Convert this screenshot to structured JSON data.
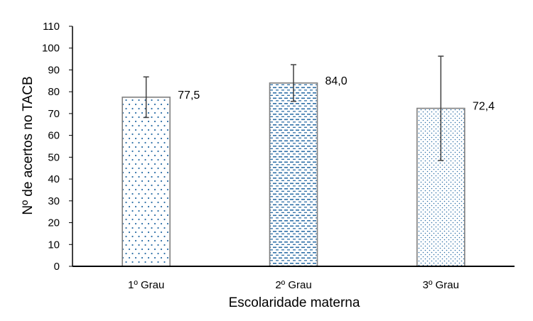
{
  "chart_data": {
    "type": "bar",
    "title": "",
    "xlabel": "Escolaridade materna",
    "ylabel": "Nº  de acertos no TACB",
    "ylim": [
      0,
      110
    ],
    "yticks": [
      0,
      10,
      20,
      30,
      40,
      50,
      60,
      70,
      80,
      90,
      100,
      110
    ],
    "ytick_labels": [
      "0",
      "10",
      "20",
      "30",
      "40",
      "50",
      "60",
      "70",
      "80",
      "90",
      "100",
      "110"
    ],
    "categories": [
      "1º Grau",
      "2º Grau",
      "3º Grau"
    ],
    "values": [
      77.5,
      84.0,
      72.4
    ],
    "value_labels": [
      "77,5",
      "84,0",
      "72,4"
    ],
    "error_low": [
      68.2,
      75.6,
      48.5
    ],
    "error_high": [
      86.8,
      92.4,
      96.3
    ],
    "patterns": [
      "dots",
      "dashes",
      "fine-dots"
    ],
    "colors": {
      "pattern": "#2e6fa7",
      "bar_outline": "#7f7f7f",
      "axis": "#000000",
      "error_bar": "#404040"
    },
    "grid": false,
    "legend": "none"
  }
}
